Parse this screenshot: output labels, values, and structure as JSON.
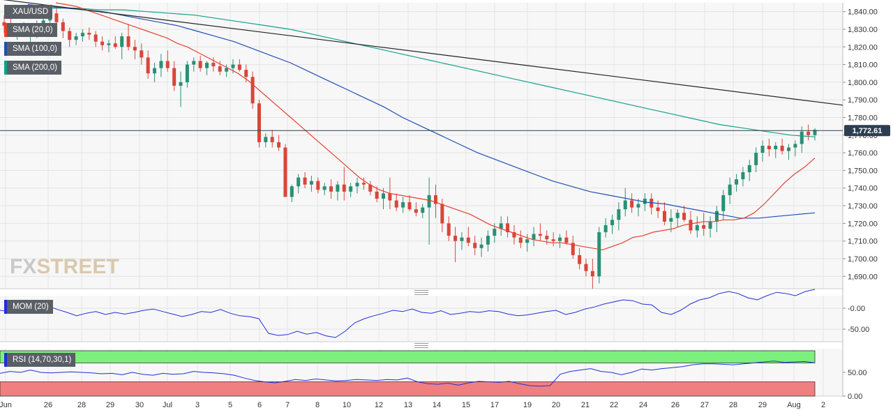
{
  "symbol": "XAU/USD",
  "watermark": {
    "part1": "FX",
    "part2": "STREET"
  },
  "legends": {
    "main": [
      {
        "label": "XAU/USD",
        "color": "#5a5f66"
      },
      {
        "label": "SMA (20,0)",
        "color": "#e8402e"
      },
      {
        "label": "SMA (100,0)",
        "color": "#1f4fb4"
      },
      {
        "label": "SMA (200,0)",
        "color": "#13a08a"
      }
    ],
    "mom": {
      "label": "MOM (20)",
      "color": "#1f2fd6"
    },
    "rsi": {
      "label": "RSI (14,70,30,1)",
      "color": "#1f2fd6"
    }
  },
  "price_badge": "1,772.61",
  "x_ticks": [
    "Jun",
    "26",
    "28",
    "29",
    "30",
    "Jul",
    "3",
    "5",
    "6",
    "7",
    "8",
    "10",
    "12",
    "13",
    "14",
    "15",
    "17",
    "19",
    "20",
    "21",
    "22",
    "24",
    "26",
    "27",
    "28",
    "29",
    "Aug",
    "2"
  ],
  "y_ticks_main": [
    "1,840.00",
    "1,830.00",
    "1,820.00",
    "1,810.00",
    "1,800.00",
    "1,790.00",
    "1,780.00",
    "1,770.00",
    "1,760.00",
    "1,750.00",
    "1,740.00",
    "1,730.00",
    "1,720.00",
    "1,710.00",
    "1,700.00",
    "1,690.00"
  ],
  "y_ticks_mom": [
    "-0.00",
    "-50.00"
  ],
  "y_ticks_rsi": [
    "50.00",
    "0.00"
  ],
  "chart_data": {
    "type": "candlestick",
    "title": "XAU/USD",
    "ylim": [
      1683,
      1845
    ],
    "candles_ohlc": [
      [
        1834,
        1838,
        1828,
        1832
      ],
      [
        1832,
        1836,
        1826,
        1829
      ],
      [
        1829,
        1833,
        1824,
        1831
      ],
      [
        1831,
        1834,
        1826,
        1827
      ],
      [
        1827,
        1832,
        1822,
        1829
      ],
      [
        1829,
        1835,
        1825,
        1833
      ],
      [
        1833,
        1838,
        1829,
        1835
      ],
      [
        1835,
        1842,
        1832,
        1839
      ],
      [
        1839,
        1843,
        1832,
        1834
      ],
      [
        1834,
        1836,
        1825,
        1829
      ],
      [
        1829,
        1831,
        1820,
        1824
      ],
      [
        1824,
        1828,
        1821,
        1826
      ],
      [
        1826,
        1830,
        1823,
        1828
      ],
      [
        1828,
        1831,
        1824,
        1827
      ],
      [
        1827,
        1829,
        1820,
        1823
      ],
      [
        1823,
        1826,
        1818,
        1821
      ],
      [
        1821,
        1824,
        1817,
        1822
      ],
      [
        1822,
        1826,
        1819,
        1820
      ],
      [
        1820,
        1828,
        1813,
        1826
      ],
      [
        1826,
        1833,
        1818,
        1820
      ],
      [
        1820,
        1824,
        1813,
        1818
      ],
      [
        1818,
        1822,
        1810,
        1814
      ],
      [
        1814,
        1818,
        1802,
        1805
      ],
      [
        1805,
        1811,
        1800,
        1808
      ],
      [
        1808,
        1816,
        1803,
        1812
      ],
      [
        1812,
        1818,
        1806,
        1808
      ],
      [
        1808,
        1812,
        1795,
        1798
      ],
      [
        1798,
        1806,
        1786,
        1800
      ],
      [
        1800,
        1812,
        1797,
        1810
      ],
      [
        1810,
        1814,
        1806,
        1812
      ],
      [
        1812,
        1815,
        1806,
        1808
      ],
      [
        1808,
        1812,
        1804,
        1811
      ],
      [
        1811,
        1814,
        1806,
        1809
      ],
      [
        1809,
        1812,
        1804,
        1806
      ],
      [
        1806,
        1810,
        1803,
        1808
      ],
      [
        1808,
        1813,
        1805,
        1810
      ],
      [
        1810,
        1813,
        1806,
        1807
      ],
      [
        1807,
        1810,
        1800,
        1803
      ],
      [
        1803,
        1806,
        1785,
        1788
      ],
      [
        1788,
        1790,
        1763,
        1766
      ],
      [
        1766,
        1771,
        1763,
        1769
      ],
      [
        1769,
        1773,
        1763,
        1766
      ],
      [
        1766,
        1770,
        1761,
        1763
      ],
      [
        1763,
        1765,
        1735,
        1735
      ],
      [
        1735,
        1742,
        1732,
        1741
      ],
      [
        1741,
        1748,
        1737,
        1746
      ],
      [
        1746,
        1749,
        1740,
        1742
      ],
      [
        1742,
        1747,
        1738,
        1744
      ],
      [
        1744,
        1746,
        1737,
        1739
      ],
      [
        1739,
        1743,
        1736,
        1741
      ],
      [
        1741,
        1745,
        1734,
        1738
      ],
      [
        1738,
        1744,
        1733,
        1742
      ],
      [
        1742,
        1752,
        1733,
        1738
      ],
      [
        1738,
        1743,
        1735,
        1741
      ],
      [
        1741,
        1746,
        1737,
        1743
      ],
      [
        1743,
        1746,
        1739,
        1742
      ],
      [
        1742,
        1744,
        1736,
        1738
      ],
      [
        1738,
        1741,
        1732,
        1734
      ],
      [
        1734,
        1740,
        1728,
        1737
      ],
      [
        1737,
        1746,
        1728,
        1733
      ],
      [
        1733,
        1737,
        1727,
        1729
      ],
      [
        1729,
        1735,
        1726,
        1732
      ],
      [
        1732,
        1736,
        1727,
        1728
      ],
      [
        1728,
        1732,
        1724,
        1726
      ],
      [
        1726,
        1731,
        1723,
        1729
      ],
      [
        1729,
        1746,
        1708,
        1736
      ],
      [
        1736,
        1742,
        1723,
        1731
      ],
      [
        1731,
        1734,
        1715,
        1720
      ],
      [
        1720,
        1724,
        1710,
        1713
      ],
      [
        1713,
        1718,
        1698,
        1710
      ],
      [
        1710,
        1715,
        1705,
        1712
      ],
      [
        1712,
        1718,
        1707,
        1709
      ],
      [
        1709,
        1713,
        1702,
        1706
      ],
      [
        1706,
        1712,
        1701,
        1708
      ],
      [
        1708,
        1716,
        1704,
        1713
      ],
      [
        1713,
        1720,
        1709,
        1717
      ],
      [
        1717,
        1724,
        1713,
        1720
      ],
      [
        1720,
        1724,
        1712,
        1715
      ],
      [
        1715,
        1719,
        1708,
        1712
      ],
      [
        1712,
        1716,
        1706,
        1709
      ],
      [
        1709,
        1714,
        1704,
        1711
      ],
      [
        1711,
        1718,
        1707,
        1714
      ],
      [
        1714,
        1720,
        1710,
        1713
      ],
      [
        1713,
        1716,
        1708,
        1711
      ],
      [
        1711,
        1715,
        1707,
        1710
      ],
      [
        1710,
        1714,
        1706,
        1712
      ],
      [
        1712,
        1716,
        1708,
        1709
      ],
      [
        1709,
        1713,
        1700,
        1702
      ],
      [
        1702,
        1706,
        1694,
        1697
      ],
      [
        1697,
        1700,
        1690,
        1693
      ],
      [
        1693,
        1700,
        1683,
        1690
      ],
      [
        1690,
        1718,
        1686,
        1715
      ],
      [
        1715,
        1723,
        1712,
        1719
      ],
      [
        1719,
        1725,
        1714,
        1722
      ],
      [
        1722,
        1732,
        1716,
        1728
      ],
      [
        1728,
        1740,
        1724,
        1733
      ],
      [
        1733,
        1737,
        1726,
        1729
      ],
      [
        1729,
        1734,
        1724,
        1731
      ],
      [
        1731,
        1737,
        1727,
        1734
      ],
      [
        1734,
        1737,
        1725,
        1729
      ],
      [
        1729,
        1733,
        1723,
        1727
      ],
      [
        1727,
        1732,
        1719,
        1721
      ],
      [
        1721,
        1728,
        1715,
        1723
      ],
      [
        1723,
        1728,
        1718,
        1726
      ],
      [
        1726,
        1730,
        1721,
        1722
      ],
      [
        1722,
        1727,
        1714,
        1716
      ],
      [
        1716,
        1724,
        1712,
        1719
      ],
      [
        1719,
        1726,
        1713,
        1717
      ],
      [
        1717,
        1724,
        1712,
        1721
      ],
      [
        1721,
        1730,
        1715,
        1727
      ],
      [
        1727,
        1739,
        1722,
        1736
      ],
      [
        1736,
        1746,
        1731,
        1742
      ],
      [
        1742,
        1748,
        1738,
        1745
      ],
      [
        1745,
        1752,
        1741,
        1749
      ],
      [
        1749,
        1756,
        1744,
        1753
      ],
      [
        1753,
        1763,
        1749,
        1760
      ],
      [
        1760,
        1767,
        1755,
        1764
      ],
      [
        1764,
        1768,
        1758,
        1762
      ],
      [
        1762,
        1766,
        1757,
        1764
      ],
      [
        1764,
        1768,
        1759,
        1761
      ],
      [
        1761,
        1765,
        1756,
        1763
      ],
      [
        1763,
        1767,
        1758,
        1765
      ],
      [
        1765,
        1775,
        1760,
        1772
      ],
      [
        1772,
        1776,
        1767,
        1770
      ],
      [
        1770,
        1774,
        1767,
        1773
      ]
    ],
    "sma20": [
      1845,
      1844,
      1843,
      1841,
      1839,
      1837,
      1835,
      1833,
      1831,
      1829,
      1827,
      1825,
      1822,
      1820,
      1817,
      1814,
      1811,
      1808,
      1805,
      1801,
      1796,
      1791,
      1786,
      1781,
      1776,
      1771,
      1766,
      1761,
      1756,
      1751,
      1746,
      1742,
      1739,
      1737,
      1736,
      1735,
      1734,
      1733,
      1731,
      1729,
      1727,
      1725,
      1722,
      1719,
      1717,
      1715,
      1713,
      1711,
      1710,
      1709,
      1709,
      1708,
      1707,
      1706,
      1705,
      1707,
      1709,
      1712,
      1713,
      1715,
      1716,
      1717,
      1719,
      1720,
      1721,
      1721,
      1722,
      1722,
      1723,
      1726,
      1731,
      1737,
      1743,
      1748,
      1752,
      1757
    ],
    "sma100": [
      1844,
      1843,
      1842,
      1841,
      1840,
      1838,
      1836,
      1834,
      1832,
      1829,
      1826,
      1823,
      1819,
      1815,
      1811,
      1806,
      1801,
      1796,
      1791,
      1786,
      1780,
      1775,
      1770,
      1765,
      1760,
      1756,
      1752,
      1748,
      1744,
      1741,
      1738,
      1736,
      1734,
      1732,
      1731,
      1729,
      1727,
      1725,
      1723,
      1723,
      1724,
      1725,
      1726
    ],
    "sma200": [
      1843,
      1842,
      1842,
      1841,
      1841,
      1840,
      1839,
      1838,
      1836,
      1834,
      1832,
      1830,
      1827,
      1824,
      1821,
      1818,
      1815,
      1812,
      1809,
      1806,
      1803,
      1800,
      1797,
      1794,
      1791,
      1788,
      1785,
      1782,
      1779,
      1776,
      1774,
      1772,
      1770,
      1769
    ],
    "trendline": [
      1847,
      1787
    ],
    "horizontal_line": 1772.61,
    "mom": [
      -5,
      -8,
      -4,
      -2,
      3,
      5,
      -3,
      -10,
      -18,
      -12,
      -8,
      -15,
      -10,
      -14,
      -10,
      -5,
      -2,
      -8,
      -14,
      -20,
      -15,
      -8,
      -10,
      -3,
      -12,
      -18,
      -20,
      -25,
      -60,
      -65,
      -63,
      -55,
      -62,
      -58,
      -66,
      -70,
      -55,
      -35,
      -25,
      -18,
      -12,
      -5,
      -8,
      -2,
      -10,
      -12,
      -6,
      -15,
      -12,
      -8,
      -10,
      -6,
      -8,
      -14,
      -18,
      -16,
      -12,
      -8,
      -5,
      -15,
      -10,
      -2,
      3,
      10,
      15,
      20,
      18,
      10,
      8,
      -10,
      -15,
      -5,
      10,
      20,
      25,
      35,
      40,
      35,
      25,
      20,
      30,
      38,
      35,
      30,
      40,
      45
    ],
    "rsi": [
      48,
      52,
      50,
      55,
      50,
      49,
      50,
      51,
      50,
      49,
      47,
      48,
      45,
      50,
      46,
      44,
      48,
      46,
      47,
      52,
      50,
      49,
      47,
      44,
      38,
      33,
      30,
      28,
      31,
      35,
      33,
      36,
      34,
      32,
      33,
      35,
      34,
      33,
      35,
      34,
      38,
      30,
      26,
      25,
      27,
      23,
      28,
      31,
      30,
      29,
      31,
      26,
      22,
      21,
      22,
      46,
      52,
      55,
      58,
      52,
      50,
      45,
      50,
      57,
      55,
      58,
      60,
      62,
      66,
      68,
      68,
      67,
      66,
      68,
      70,
      72,
      74,
      71,
      72,
      73,
      70
    ],
    "rsi_levels": [
      70,
      30
    ]
  }
}
